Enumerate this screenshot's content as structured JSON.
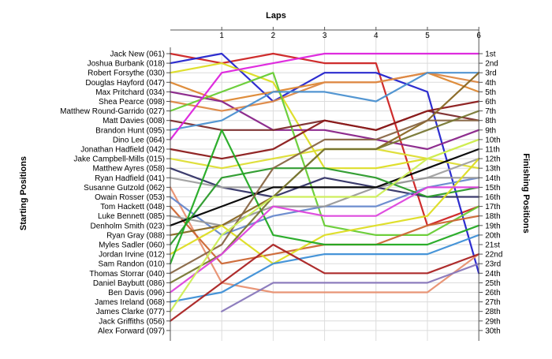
{
  "chart_data": {
    "type": "line",
    "title": "",
    "xlabel": "Laps",
    "ylabel_left": "Starting Positions",
    "ylabel_right": "Finishing Positions",
    "x": [
      0,
      1,
      2,
      3,
      4,
      5,
      6
    ],
    "x_tick_labels": [
      "1",
      "2",
      "3",
      "4",
      "5",
      "6"
    ],
    "ylim": [
      1,
      30
    ],
    "grid": true,
    "start_labels": [
      "Jack New (061)",
      "Joshua Burbank (018)",
      "Robert Forsythe (030)",
      "Douglas Hayford (047)",
      "Max Pritchard (034)",
      "Shea Pearce (098)",
      "Matthew Round-Garrido (027)",
      "Matt Davies (008)",
      "Brandon Hunt (095)",
      "Dino Lee (064)",
      "Jonathan Hadfield (042)",
      "Jake Campbell-Mills (015)",
      "Matthew Ayres (058)",
      "Ryan Hadfield (041)",
      "Susanne Gutzold (062)",
      "Owain Rosser (053)",
      "Tom Hackett (048)",
      "Luke Bennett (085)",
      "Denholm Smith (023)",
      "Ryan Gray (088)",
      "Myles Sadler (060)",
      "Jordan Irvine (012)",
      "Sam Randon (010)",
      "Thomas Storrar (040)",
      "Daniel Baybutt (086)",
      "Ben Davis (096)",
      "James Ireland (068)",
      "James Clarke (077)",
      "Jack Griffiths (056)",
      "Alex Forward (097)"
    ],
    "finish_labels": [
      "1st",
      "2nd",
      "3rd",
      "4th",
      "5th",
      "6th",
      "7th",
      "8th",
      "9th",
      "10th",
      "11th",
      "12th",
      "13th",
      "14th",
      "15th",
      "16th",
      "17th",
      "18th",
      "19th",
      "20th",
      "21st",
      "22nd",
      "23rd",
      "24th",
      "25th",
      "26th",
      "27th",
      "28th",
      "29th",
      "30th"
    ],
    "series": [
      {
        "color": "#cc2222",
        "values": [
          1,
          2,
          1,
          2,
          2,
          19,
          17
        ]
      },
      {
        "color": "#2222cc",
        "values": [
          2,
          1,
          6,
          3,
          3,
          5,
          24
        ]
      },
      {
        "color": "#dddd22",
        "values": [
          3,
          2,
          4,
          13,
          13,
          12,
          10
        ]
      },
      {
        "color": "#dd8833",
        "values": [
          4,
          6,
          5,
          4,
          4,
          3,
          5
        ]
      },
      {
        "color": "#882288",
        "values": [
          5,
          6,
          9,
          9,
          10,
          11,
          9
        ]
      },
      {
        "color": "#dd8844",
        "values": [
          6,
          7,
          6,
          4,
          4,
          3,
          4
        ]
      },
      {
        "color": "#66cc33",
        "values": [
          7,
          5,
          3,
          19,
          20,
          20,
          17
        ]
      },
      {
        "color": "#7a2a2a",
        "values": [
          8,
          9,
          9,
          8,
          9,
          7,
          8
        ]
      },
      {
        "color": "#4a90d0",
        "values": [
          9,
          8,
          5,
          5,
          6,
          3,
          3
        ]
      },
      {
        "color": "#dd22dd",
        "values": [
          10,
          3,
          2,
          1,
          1,
          1,
          1
        ]
      },
      {
        "color": "#8b1a1a",
        "values": [
          11,
          12,
          11,
          8,
          9,
          7,
          6
        ]
      },
      {
        "color": "#dddd33",
        "values": [
          12,
          13,
          12,
          11,
          11,
          12,
          13
        ]
      },
      {
        "color": "#333366",
        "values": [
          13,
          15,
          16,
          14,
          15,
          16,
          16
        ]
      },
      {
        "color": "#a0a0a0",
        "values": [
          14,
          15,
          15,
          15,
          15,
          14,
          12
        ]
      },
      {
        "color": "#e89070",
        "values": [
          15,
          25,
          26,
          26,
          26,
          26,
          22
        ]
      },
      {
        "color": "#6688cc",
        "values": [
          16,
          20,
          18,
          17,
          17,
          15,
          14
        ]
      },
      {
        "color": "#cc6633",
        "values": [
          17,
          23,
          22,
          21,
          21,
          19,
          18
        ]
      },
      {
        "color": "#999999",
        "values": [
          18,
          19,
          17,
          17,
          15,
          14,
          14
        ]
      },
      {
        "color": "#000000",
        "values": [
          19,
          17,
          15,
          15,
          15,
          13,
          11
        ]
      },
      {
        "color": "#886622",
        "values": [
          20,
          19,
          16,
          11,
          11,
          8,
          3
        ]
      },
      {
        "color": "#2a9a2a",
        "values": [
          21,
          14,
          13,
          13,
          14,
          16,
          15
        ]
      },
      {
        "color": "#dddd22",
        "values": [
          22,
          19,
          23,
          20,
          19,
          18,
          12
        ]
      },
      {
        "color": "#22aa22",
        "values": [
          23,
          9,
          20,
          21,
          21,
          21,
          19
        ]
      },
      {
        "color": "#886644",
        "values": [
          24,
          21,
          13,
          10,
          10,
          8,
          8
        ]
      },
      {
        "color": "#777733",
        "values": [
          25,
          22,
          16,
          11,
          11,
          9,
          7
        ]
      },
      {
        "color": "#dd44dd",
        "values": [
          26,
          22,
          17,
          18,
          18,
          15,
          15
        ]
      },
      {
        "color": "#3d8fd6",
        "values": [
          27,
          26,
          23,
          22,
          22,
          22,
          20
        ]
      },
      {
        "color": "#ccee55",
        "values": [
          28,
          20,
          16,
          16,
          16,
          12,
          10
        ]
      },
      {
        "color": "#aa2222",
        "values": [
          29,
          25,
          21,
          24,
          24,
          24,
          22
        ]
      },
      {
        "color": "#8877bb",
        "values": [
          null,
          28,
          25,
          25,
          25,
          25,
          23
        ]
      }
    ]
  }
}
